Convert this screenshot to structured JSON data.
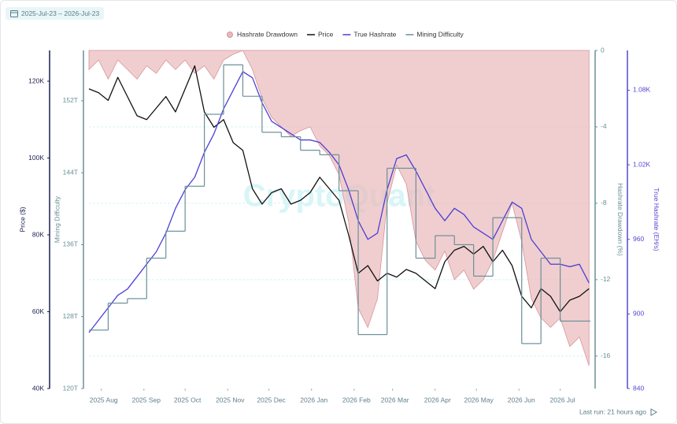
{
  "chart_data": {
    "type": "line",
    "date_range": "2025-Jul-23 – 2026-Jul-23",
    "watermark": "CryptoQuant",
    "footer": "Last run: 21 hours ago",
    "xlim": [
      "2025-07-23",
      "2026-07-23"
    ],
    "xticks": [
      {
        "value": "2025-08",
        "label": "2025 Aug"
      },
      {
        "value": "2025-09",
        "label": "2025 Sep"
      },
      {
        "value": "2025-10",
        "label": "2025 Oct"
      },
      {
        "value": "2025-11",
        "label": "2025 Nov"
      },
      {
        "value": "2025-12",
        "label": "2025 Dec"
      },
      {
        "value": "2026-01",
        "label": "2026 Jan"
      },
      {
        "value": "2026-02",
        "label": "2026 Feb"
      },
      {
        "value": "2026-03",
        "label": "2026 Mar"
      },
      {
        "value": "2026-04",
        "label": "2026 Apr"
      },
      {
        "value": "2026-05",
        "label": "2026 May"
      },
      {
        "value": "2026-06",
        "label": "2026 Jun"
      },
      {
        "value": "2026-07",
        "label": "2026 Jul"
      }
    ],
    "ylabel": "Price ($)",
    "ylim": [
      40000,
      128000
    ],
    "yticks": [
      {
        "value": 40000,
        "label": "40K"
      },
      {
        "value": 60000,
        "label": "60K"
      },
      {
        "value": 80000,
        "label": "80K"
      },
      {
        "value": 100000,
        "label": "100K"
      },
      {
        "value": 120000,
        "label": "120K"
      }
    ],
    "y2label": "Mining Difficulty",
    "y2lim": [
      120,
      157.6
    ],
    "y2ticks": [
      {
        "value": 120,
        "label": "120T"
      },
      {
        "value": 128,
        "label": "128T"
      },
      {
        "value": 136,
        "label": "136T"
      },
      {
        "value": 144,
        "label": "144T"
      },
      {
        "value": 152,
        "label": "152T"
      }
    ],
    "y3label": "Hashrate Drawdown (%)",
    "y3lim": [
      -17.7,
      0
    ],
    "y3ticks": [
      -16,
      -12,
      -8,
      -4,
      0
    ],
    "y4label": "True Hashrate (EH/s)",
    "y4lim": [
      840,
      1112
    ],
    "y4ticks": [
      840,
      900,
      960,
      {
        "value": 1020,
        "label": "1.02K"
      },
      {
        "value": 1080,
        "label": "1.08K"
      }
    ],
    "grid": true,
    "legend": "top",
    "x": [
      "2025-07-23",
      "2025-07-30",
      "2025-08-06",
      "2025-08-13",
      "2025-08-20",
      "2025-08-27",
      "2025-09-03",
      "2025-09-10",
      "2025-09-17",
      "2025-09-24",
      "2025-10-01",
      "2025-10-08",
      "2025-10-15",
      "2025-10-22",
      "2025-10-29",
      "2025-11-05",
      "2025-11-12",
      "2025-11-19",
      "2025-11-26",
      "2025-12-03",
      "2025-12-10",
      "2025-12-17",
      "2025-12-24",
      "2025-12-31",
      "2026-01-07",
      "2026-01-14",
      "2026-01-21",
      "2026-01-28",
      "2026-02-04",
      "2026-02-11",
      "2026-02-18",
      "2026-02-25",
      "2026-03-04",
      "2026-03-11",
      "2026-03-18",
      "2026-03-25",
      "2026-04-01",
      "2026-04-08",
      "2026-04-15",
      "2026-04-22",
      "2026-04-29",
      "2026-05-06",
      "2026-05-13",
      "2026-05-20",
      "2026-05-27",
      "2026-06-03",
      "2026-06-10",
      "2026-06-17",
      "2026-06-24",
      "2026-07-01",
      "2026-07-08",
      "2026-07-15",
      "2026-07-22"
    ],
    "series": [
      {
        "name": "Hashrate Drawdown",
        "kind": "area",
        "axis": "y3",
        "color": "#e9b9bb",
        "values": [
          -1,
          -0.5,
          -1.5,
          -0.5,
          -1,
          -1.5,
          -0.8,
          -1.2,
          -0.5,
          -1,
          -0.5,
          -1.2,
          -0.8,
          -1.5,
          -0.5,
          -0.2,
          0,
          -1,
          -2.5,
          -3.5,
          -4,
          -4.5,
          -4.2,
          -4,
          -5,
          -5.5,
          -6.5,
          -9,
          -13.5,
          -14.5,
          -13,
          -8,
          -6,
          -7,
          -10,
          -11,
          -11.5,
          -10.5,
          -12,
          -11.5,
          -12.5,
          -12,
          -11,
          -9.5,
          -8,
          -10,
          -13,
          -14,
          -14.5,
          -14,
          -15.5,
          -15,
          -16.5
        ]
      },
      {
        "name": "Price",
        "kind": "line",
        "axis": "y",
        "color": "#111111",
        "values": [
          118000,
          117000,
          115000,
          121000,
          116000,
          111000,
          110000,
          113000,
          116000,
          112000,
          118000,
          124000,
          112000,
          108000,
          110000,
          104000,
          102000,
          92000,
          88000,
          91000,
          92000,
          88000,
          89000,
          91000,
          95000,
          92000,
          89000,
          80000,
          70000,
          72000,
          68000,
          70000,
          69000,
          71000,
          70000,
          68000,
          66000,
          73000,
          76000,
          77000,
          75000,
          77000,
          73000,
          76000,
          72000,
          64000,
          61000,
          66000,
          64000,
          60000,
          63000,
          64000,
          66000
        ]
      },
      {
        "name": "True Hashrate",
        "kind": "line",
        "axis": "y4",
        "color": "#4c3fd4",
        "values": [
          885,
          895,
          905,
          915,
          920,
          930,
          940,
          950,
          965,
          985,
          1000,
          1010,
          1030,
          1045,
          1065,
          1080,
          1095,
          1090,
          1070,
          1055,
          1050,
          1045,
          1040,
          1040,
          1038,
          1030,
          1020,
          1000,
          975,
          960,
          965,
          1000,
          1025,
          1028,
          1015,
          1000,
          985,
          975,
          985,
          980,
          970,
          965,
          960,
          975,
          990,
          985,
          960,
          950,
          940,
          940,
          938,
          940,
          925
        ]
      },
      {
        "name": "Mining Difficulty",
        "kind": "step",
        "axis": "y2",
        "color": "#6a8f99",
        "values": [
          126.5,
          126.5,
          129.5,
          129.5,
          130,
          130,
          134.5,
          134.5,
          137.5,
          137.5,
          142.5,
          142.5,
          150.5,
          150.5,
          156,
          156,
          152.5,
          152.5,
          148.5,
          148.5,
          148,
          148,
          146.5,
          146.5,
          146,
          146,
          142,
          142,
          126,
          126,
          126,
          144.5,
          144.5,
          144.5,
          134.5,
          134.5,
          137,
          137,
          136,
          136,
          132.5,
          132.5,
          139,
          139,
          139,
          125,
          125,
          134.5,
          134.5,
          127.5,
          127.5,
          127.5,
          127.5
        ]
      }
    ],
    "axis_colors": {
      "y": "#1c1f52",
      "y2": "#6a8f99",
      "y3": "#6a8f99",
      "y4": "#5548cf"
    }
  }
}
